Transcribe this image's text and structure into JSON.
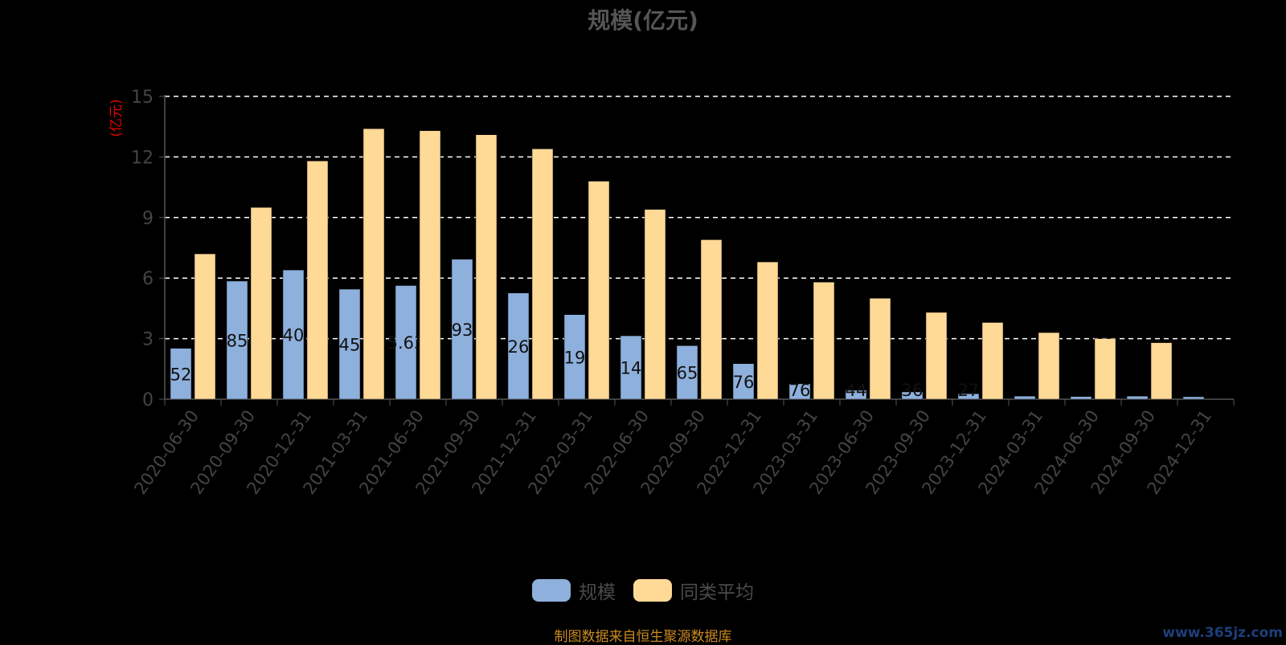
{
  "chart_data": {
    "type": "bar",
    "title": "规模(亿元)",
    "ylabel": "(亿元)",
    "ylim": [
      0,
      15
    ],
    "yticks": [
      0,
      3,
      6,
      9,
      12,
      15
    ],
    "grid": true,
    "legend_position": "bottom-center",
    "categories": [
      "2020-06-30",
      "2020-09-30",
      "2020-12-31",
      "2021-03-31",
      "2021-06-30",
      "2021-09-30",
      "2021-12-31",
      "2022-03-31",
      "2022-06-30",
      "2022-09-30",
      "2022-12-31",
      "2023-03-31",
      "2023-06-30",
      "2023-09-30",
      "2023-12-31",
      "2024-03-31",
      "2024-06-30",
      "2024-09-30",
      "2024-12-31"
    ],
    "series": [
      {
        "name": "规模",
        "color": "#8eb0dc",
        "values": [
          2.52,
          5.85,
          6.4,
          5.45,
          5.63,
          6.93,
          5.26,
          4.19,
          3.14,
          2.65,
          1.76,
          0.76,
          0.44,
          0.36,
          0.27,
          0.15,
          0.13,
          0.15,
          0.12
        ],
        "labels": [
          "52",
          "85",
          "40",
          "45",
          "5.63",
          "93",
          "26",
          "19",
          "14",
          "65",
          "76",
          "76",
          "44",
          "36",
          "27",
          "",
          "",
          "",
          ""
        ]
      },
      {
        "name": "同类平均",
        "color": "#ffd996",
        "values": [
          7.2,
          9.5,
          11.8,
          13.4,
          13.3,
          13.1,
          12.4,
          10.8,
          9.4,
          7.9,
          6.8,
          5.8,
          5.0,
          4.3,
          3.8,
          3.3,
          3.0,
          2.8,
          0
        ],
        "labels": []
      }
    ]
  },
  "source_text": "制图数据来自恒生聚源数据库",
  "watermark": "www.365jz.com"
}
